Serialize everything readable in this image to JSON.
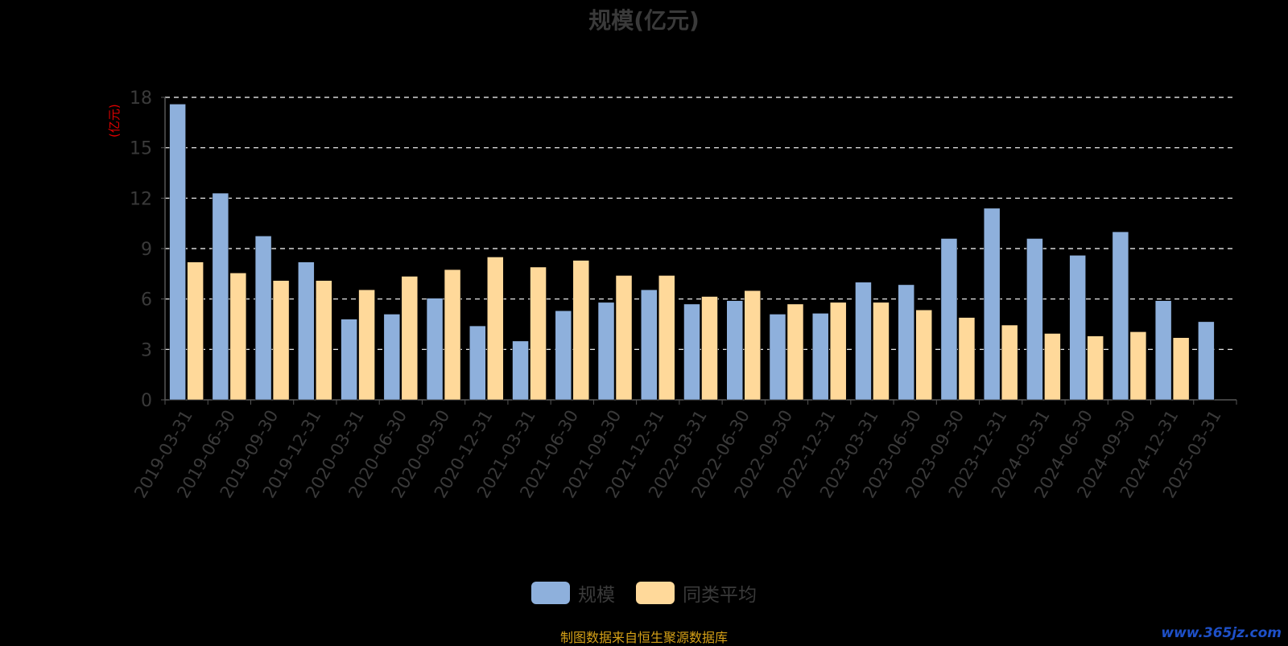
{
  "chart_data": {
    "type": "bar",
    "title": "规模(亿元)",
    "ylabel": "(亿元)",
    "ylim": [
      0,
      18
    ],
    "yticks": [
      0,
      3,
      6,
      9,
      12,
      15,
      18
    ],
    "grid": true,
    "legend_position": "bottom",
    "categories": [
      "2019-03-31",
      "2019-06-30",
      "2019-09-30",
      "2019-12-31",
      "2020-03-31",
      "2020-06-30",
      "2020-09-30",
      "2020-12-31",
      "2021-03-31",
      "2021-06-30",
      "2021-09-30",
      "2021-12-31",
      "2022-03-31",
      "2022-06-30",
      "2022-09-30",
      "2022-12-31",
      "2023-03-31",
      "2023-06-30",
      "2023-09-30",
      "2023-12-31",
      "2024-03-31",
      "2024-06-30",
      "2024-09-30",
      "2024-12-31",
      "2025-03-31"
    ],
    "series": [
      {
        "name": "规模",
        "color": "#8eb0dc",
        "values": [
          17.6,
          12.3,
          9.75,
          8.2,
          4.8,
          5.1,
          6.05,
          4.4,
          3.5,
          5.3,
          5.8,
          6.55,
          5.7,
          5.9,
          5.1,
          5.15,
          7.0,
          6.85,
          9.6,
          11.4,
          9.6,
          8.6,
          10.0,
          5.9,
          4.65
        ]
      },
      {
        "name": "同类平均",
        "color": "#ffd99a",
        "values": [
          8.2,
          7.55,
          7.1,
          7.1,
          6.55,
          7.35,
          7.75,
          8.5,
          7.9,
          8.3,
          7.4,
          7.4,
          6.15,
          6.5,
          5.7,
          5.8,
          5.8,
          5.35,
          4.9,
          4.45,
          3.95,
          3.8,
          4.05,
          3.7,
          null
        ]
      }
    ]
  },
  "footer": {
    "source": "制图数据来自恒生聚源数据库",
    "watermark": "www.365jz.com"
  }
}
